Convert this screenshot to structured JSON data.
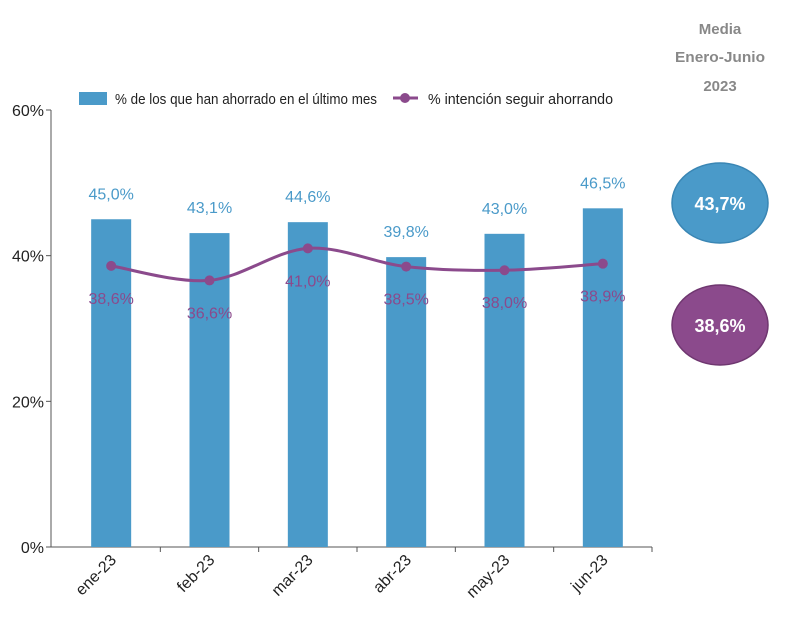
{
  "chart_data": {
    "type": "bar+line",
    "categories": [
      "ene-23",
      "feb-23",
      "mar-23",
      "abr-23",
      "may-23",
      "jun-23"
    ],
    "series": [
      {
        "name": "% de los que han ahorrado en el último mes",
        "type": "bar",
        "values": [
          45.0,
          43.1,
          44.6,
          39.8,
          43.0,
          46.5
        ],
        "labels": [
          "45,0%",
          "43,1%",
          "44,6%",
          "39,8%",
          "43,0%",
          "46,5%"
        ],
        "color": "#4a9ac9"
      },
      {
        "name": "% intención seguir ahorrando",
        "type": "line",
        "values": [
          38.6,
          36.6,
          41.0,
          38.5,
          38.0,
          38.9
        ],
        "labels": [
          "38,6%",
          "36,6%",
          "41,0%",
          "38,5%",
          "38,0%",
          "38,9%"
        ],
        "color": "#8b4a8c"
      }
    ],
    "ylim": [
      0,
      60
    ],
    "yticks": [
      0,
      20,
      40,
      60
    ],
    "ytick_labels": [
      "0%",
      "20%",
      "40%",
      "60%"
    ],
    "legend": "top",
    "grid": false,
    "summary": {
      "title_lines": [
        "Media",
        "Enero-Junio",
        "2023"
      ],
      "bar_mean": "43,7%",
      "line_mean": "38,6%"
    }
  }
}
